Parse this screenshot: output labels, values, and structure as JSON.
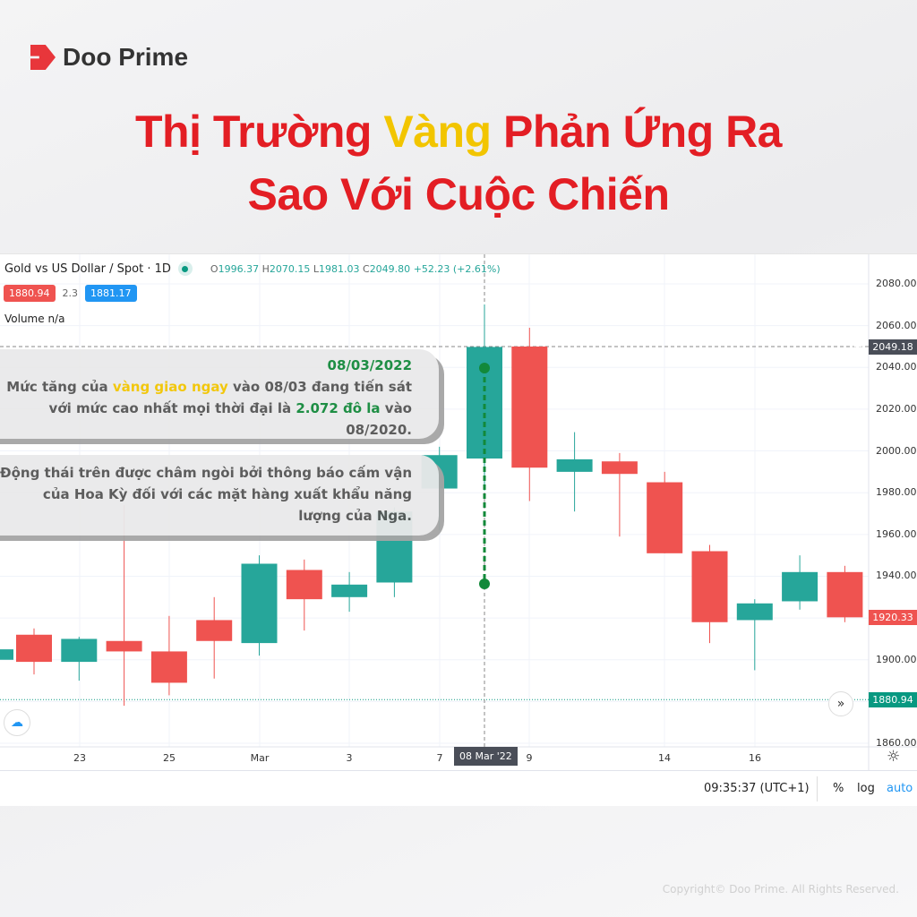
{
  "brand": {
    "name": "Doo Prime"
  },
  "title": {
    "line1_a": "Thị Trường ",
    "line1_b": "Vàng",
    "line1_c": " Phản Ứng Ra",
    "line2": "Sao Với Cuộc Chiến"
  },
  "chart": {
    "symbol": "Gold vs US Dollar / Spot · 1D",
    "ohlc": {
      "o_label": "O",
      "o": "1996.37",
      "h_label": "H",
      "h": "2070.15",
      "l_label": "L",
      "l": "1981.03",
      "c_label": "C",
      "c": "2049.80",
      "change": "+52.23 (+2.61%)"
    },
    "bid": "1880.94",
    "spread": "2.3",
    "ask": "1881.17",
    "volume": "Volume  n/a",
    "price_ticks": [
      "2080.00",
      "2060.00",
      "2040.00",
      "2020.00",
      "2000.00",
      "1980.00",
      "1960.00",
      "1940.00",
      "1900.00",
      "1860.00"
    ],
    "price_labels": {
      "crosshair": "2049.18",
      "last": "1920.33",
      "bid": "1880.94"
    },
    "date_ticks": [
      "23",
      "25",
      "Mar",
      "3",
      "7",
      "9",
      "14",
      "16"
    ],
    "selected_date": "08 Mar '22",
    "time": "09:35:37 (UTC+1)",
    "percent": "%",
    "log": "log",
    "auto": "auto",
    "colors": {
      "up": "#26a69a",
      "down": "#ef5350",
      "annotation": "#12893a"
    }
  },
  "chart_data": {
    "type": "candlestick",
    "ylim": [
      1860,
      2080
    ],
    "candles": [
      {
        "o": 1900,
        "h": 1906,
        "l": 1898,
        "c": 1905
      },
      {
        "o": 1912,
        "h": 1915,
        "l": 1893,
        "c": 1899
      },
      {
        "o": 1899,
        "h": 1911,
        "l": 1890,
        "c": 1910
      },
      {
        "o": 1909,
        "h": 1974,
        "l": 1878,
        "c": 1904
      },
      {
        "o": 1904,
        "h": 1921,
        "l": 1883,
        "c": 1889
      },
      {
        "o": 1919,
        "h": 1930,
        "l": 1891,
        "c": 1909
      },
      {
        "o": 1908,
        "h": 1950,
        "l": 1902,
        "c": 1946
      },
      {
        "o": 1943,
        "h": 1948,
        "l": 1914,
        "c": 1929
      },
      {
        "o": 1930,
        "h": 1942,
        "l": 1923,
        "c": 1936
      },
      {
        "o": 1937,
        "h": 1973,
        "l": 1930,
        "c": 1971
      },
      {
        "o": 1982,
        "h": 2002,
        "l": 1962,
        "c": 1998
      },
      {
        "o": 1996.37,
        "h": 2070.15,
        "l": 1981.03,
        "c": 2049.8
      },
      {
        "o": 2050,
        "h": 2059,
        "l": 1976,
        "c": 1992
      },
      {
        "o": 1990,
        "h": 2009,
        "l": 1971,
        "c": 1996
      },
      {
        "o": 1995,
        "h": 1999,
        "l": 1959,
        "c": 1989
      },
      {
        "o": 1985,
        "h": 1990,
        "l": 1951,
        "c": 1951
      },
      {
        "o": 1952,
        "h": 1955,
        "l": 1908,
        "c": 1918
      },
      {
        "o": 1919,
        "h": 1929,
        "l": 1895,
        "c": 1927
      },
      {
        "o": 1928,
        "h": 1950,
        "l": 1924,
        "c": 1942
      },
      {
        "o": 1942,
        "h": 1945,
        "l": 1918,
        "c": 1920.33
      }
    ]
  },
  "callouts": {
    "c1": {
      "date": "08/03/2022",
      "t1": "Mức tăng của ",
      "t2": "vàng giao ngay",
      "t3": " vào 08/03 đang tiến sát với mức cao nhất mọi thời đại là ",
      "t4": "2.072 đô la",
      "t5": " vào 08/2020."
    },
    "c2": {
      "text": "Động thái trên được châm ngòi bởi thông báo cấm vận của Hoa Kỳ đối với các mặt hàng xuất khẩu năng lượng của Nga."
    }
  },
  "footer": {
    "copyright": "Copyright© Doo Prime. All Rights Reserved."
  }
}
